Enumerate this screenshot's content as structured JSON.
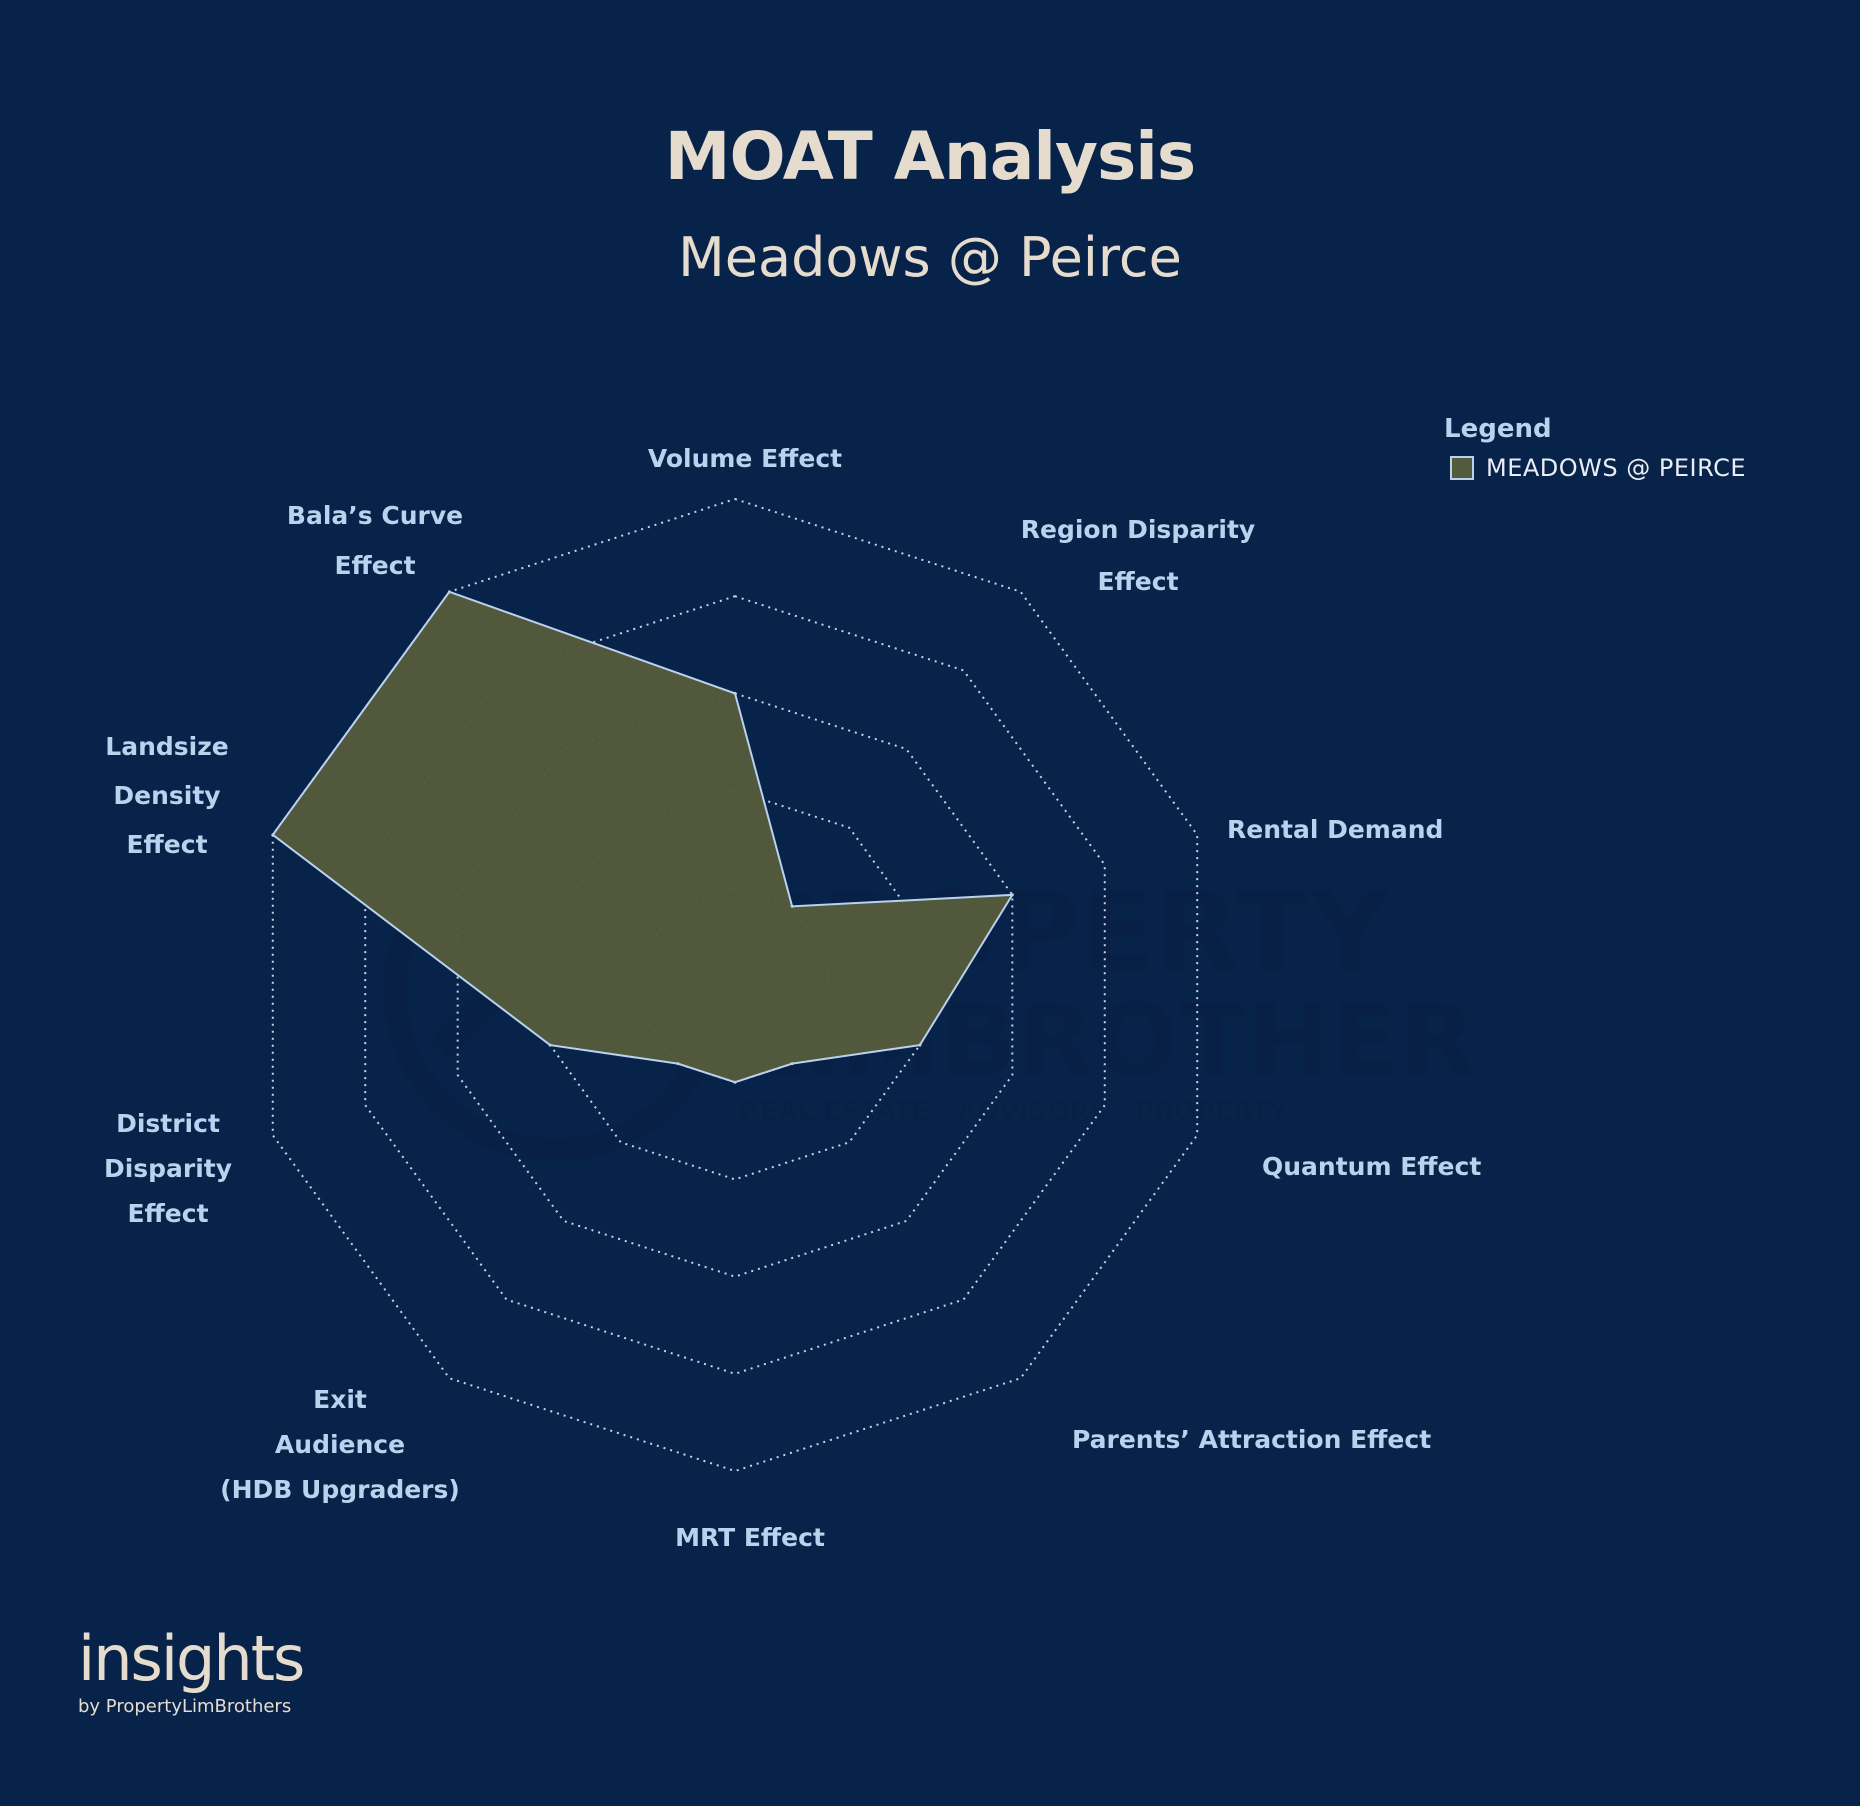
{
  "title": "MOAT Analysis",
  "subtitle": "Meadows @ Peirce",
  "legend": {
    "title": "Legend",
    "items": [
      {
        "label": "MEADOWS @ PEIRCE",
        "color": "#545a3c"
      }
    ]
  },
  "chart_data": {
    "type": "radar",
    "scale_max": 5,
    "rings": 5,
    "grid": true,
    "legend_position": "top-right",
    "axes": [
      {
        "lines": [
          "Volume Effect"
        ]
      },
      {
        "lines": [
          "Region Disparity",
          "Effect"
        ]
      },
      {
        "lines": [
          "Rental Demand"
        ]
      },
      {
        "lines": [
          "Quantum Effect"
        ]
      },
      {
        "lines": [
          "Parents’ Attraction Effect"
        ]
      },
      {
        "lines": [
          "MRT Effect"
        ]
      },
      {
        "lines": [
          "Exit",
          "Audience",
          "(HDB Upgraders)"
        ]
      },
      {
        "lines": [
          "District",
          "Disparity",
          "Effect"
        ]
      },
      {
        "lines": [
          "Landsize",
          "Density",
          "Effect"
        ]
      },
      {
        "lines": [
          "Bala’s Curve",
          "Effect"
        ]
      }
    ],
    "series": [
      {
        "name": "MEADOWS @ PEIRCE",
        "color": "#545a3c",
        "stroke": "#b9d2ee",
        "values": [
          3,
          1,
          3,
          2,
          1,
          1,
          1,
          2,
          5,
          5
        ]
      }
    ]
  },
  "brand": {
    "main": "insights",
    "sub": "by PropertyLimBrothers"
  },
  "watermark": {
    "line1": "PROPERTY",
    "line2": "LIMBROTHERS",
    "line3": "REAL ESTATE · ADVISORY · PROPERTY"
  }
}
